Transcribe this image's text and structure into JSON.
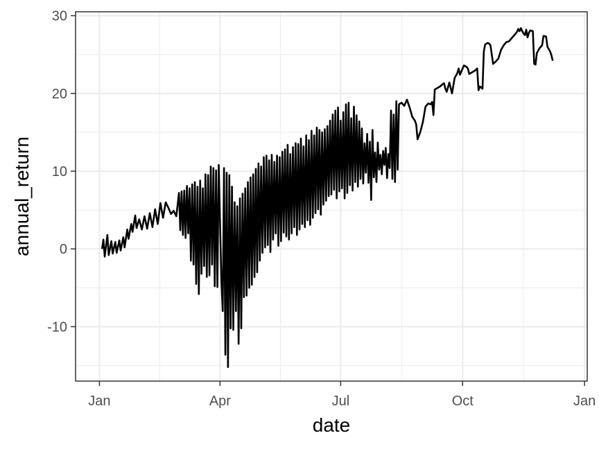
{
  "chart_data": {
    "type": "line",
    "xlabel": "date",
    "ylabel": "annual_return",
    "x_ticks": [
      {
        "label": "Jan",
        "value": "2020-01-01"
      },
      {
        "label": "Apr",
        "value": "2020-04-01"
      },
      {
        "label": "Jul",
        "value": "2020-07-01"
      },
      {
        "label": "Oct",
        "value": "2020-10-01"
      },
      {
        "label": "Jan",
        "value": "2021-01-01"
      }
    ],
    "y_ticks": [
      -10,
      0,
      10,
      20,
      30
    ],
    "xlim": [
      "2019-12-14",
      "2021-01-03"
    ],
    "ylim": [
      -17,
      30.5
    ],
    "grid": true,
    "line_color": "#000000",
    "series": [
      {
        "points": [
          [
            "2020-01-03",
            0.0
          ],
          [
            "2020-01-04",
            1.2
          ],
          [
            "2020-01-05",
            -1.0
          ],
          [
            "2020-01-07",
            1.8
          ],
          [
            "2020-01-08",
            -0.8
          ],
          [
            "2020-01-10",
            1.0
          ],
          [
            "2020-01-11",
            -0.6
          ],
          [
            "2020-01-13",
            0.9
          ],
          [
            "2020-01-14",
            -0.5
          ],
          [
            "2020-01-16",
            1.1
          ],
          [
            "2020-01-17",
            -0.2
          ],
          [
            "2020-01-19",
            1.5
          ],
          [
            "2020-01-20",
            0.2
          ],
          [
            "2020-01-22",
            2.5
          ],
          [
            "2020-01-23",
            1.3
          ],
          [
            "2020-01-25",
            3.2
          ],
          [
            "2020-01-26",
            2.2
          ],
          [
            "2020-01-28",
            4.3
          ],
          [
            "2020-01-29",
            2.7
          ],
          [
            "2020-01-31",
            3.8
          ],
          [
            "2020-02-02",
            2.5
          ],
          [
            "2020-02-04",
            4.2
          ],
          [
            "2020-02-06",
            2.6
          ],
          [
            "2020-02-08",
            4.6
          ],
          [
            "2020-02-10",
            2.8
          ],
          [
            "2020-02-12",
            5.1
          ],
          [
            "2020-02-14",
            3.2
          ],
          [
            "2020-02-16",
            5.9
          ],
          [
            "2020-02-18",
            4.0
          ],
          [
            "2020-02-20",
            6.0
          ],
          [
            "2020-02-22",
            5.3
          ],
          [
            "2020-02-24",
            4.5
          ],
          [
            "2020-02-26",
            4.9
          ],
          [
            "2020-02-28",
            4.2
          ],
          [
            "2020-03-01",
            7.2
          ],
          [
            "2020-03-02",
            2.4
          ],
          [
            "2020-03-03",
            7.4
          ],
          [
            "2020-03-04",
            1.8
          ],
          [
            "2020-03-05",
            7.5
          ],
          [
            "2020-03-06",
            1.4
          ],
          [
            "2020-03-07",
            8.1
          ],
          [
            "2020-03-08",
            2.0
          ],
          [
            "2020-03-09",
            7.8
          ],
          [
            "2020-03-10",
            -1.5
          ],
          [
            "2020-03-11",
            8.3
          ],
          [
            "2020-03-12",
            -2.0
          ],
          [
            "2020-03-13",
            8.6
          ],
          [
            "2020-03-14",
            -4.5
          ],
          [
            "2020-03-15",
            8.0
          ],
          [
            "2020-03-16",
            -5.8
          ],
          [
            "2020-03-17",
            8.8
          ],
          [
            "2020-03-18",
            -3.2
          ],
          [
            "2020-03-19",
            7.8
          ],
          [
            "2020-03-20",
            -2.2
          ],
          [
            "2020-03-21",
            9.6
          ],
          [
            "2020-03-22",
            -3.6
          ],
          [
            "2020-03-23",
            9.5
          ],
          [
            "2020-03-24",
            -3.4
          ],
          [
            "2020-03-25",
            10.6
          ],
          [
            "2020-03-26",
            -2.0
          ],
          [
            "2020-03-27",
            10.4
          ],
          [
            "2020-03-28",
            -4.8
          ],
          [
            "2020-03-29",
            10.1
          ],
          [
            "2020-03-30",
            -4.9
          ],
          [
            "2020-03-31",
            10.8
          ],
          [
            "2020-04-02",
            -4.0
          ],
          [
            "2020-04-03",
            -8.0
          ],
          [
            "2020-04-04",
            10.4
          ],
          [
            "2020-04-05",
            -13.6
          ],
          [
            "2020-04-06",
            9.8
          ],
          [
            "2020-04-07",
            -15.2
          ],
          [
            "2020-04-08",
            9.5
          ],
          [
            "2020-04-09",
            -10.2
          ],
          [
            "2020-04-10",
            8.0
          ],
          [
            "2020-04-11",
            -10.4
          ],
          [
            "2020-04-12",
            6.0
          ],
          [
            "2020-04-13",
            -8.0
          ],
          [
            "2020-04-14",
            5.5
          ],
          [
            "2020-04-15",
            -12.2
          ],
          [
            "2020-04-16",
            6.5
          ],
          [
            "2020-04-17",
            -10.2
          ],
          [
            "2020-04-18",
            7.1
          ],
          [
            "2020-04-19",
            -6.2
          ],
          [
            "2020-04-20",
            7.8
          ],
          [
            "2020-04-21",
            -6.0
          ],
          [
            "2020-04-22",
            8.6
          ],
          [
            "2020-04-23",
            -5.0
          ],
          [
            "2020-04-24",
            9.2
          ],
          [
            "2020-04-25",
            -4.6
          ],
          [
            "2020-04-26",
            9.6
          ],
          [
            "2020-04-27",
            -3.6
          ],
          [
            "2020-04-28",
            10.3
          ],
          [
            "2020-04-29",
            -3.0
          ],
          [
            "2020-04-30",
            11.0
          ],
          [
            "2020-05-01",
            -1.5
          ],
          [
            "2020-05-02",
            10.6
          ],
          [
            "2020-05-03",
            -0.5
          ],
          [
            "2020-05-04",
            11.8
          ],
          [
            "2020-05-05",
            0.2
          ],
          [
            "2020-05-06",
            12.0
          ],
          [
            "2020-05-07",
            0.5
          ],
          [
            "2020-05-08",
            11.4
          ],
          [
            "2020-05-09",
            -0.4
          ],
          [
            "2020-05-10",
            12.1
          ],
          [
            "2020-05-11",
            1.2
          ],
          [
            "2020-05-12",
            11.2
          ],
          [
            "2020-05-13",
            2.0
          ],
          [
            "2020-05-14",
            12.0
          ],
          [
            "2020-05-15",
            0.4
          ],
          [
            "2020-05-16",
            11.8
          ],
          [
            "2020-05-17",
            1.0
          ],
          [
            "2020-05-18",
            12.5
          ],
          [
            "2020-05-19",
            2.1
          ],
          [
            "2020-05-20",
            12.8
          ],
          [
            "2020-05-21",
            1.6
          ],
          [
            "2020-05-22",
            13.4
          ],
          [
            "2020-05-23",
            1.2
          ],
          [
            "2020-05-24",
            12.2
          ],
          [
            "2020-05-25",
            2.0
          ],
          [
            "2020-05-26",
            13.1
          ],
          [
            "2020-05-27",
            2.8
          ],
          [
            "2020-05-28",
            13.6
          ],
          [
            "2020-05-29",
            1.8
          ],
          [
            "2020-05-30",
            13.5
          ],
          [
            "2020-05-31",
            2.5
          ],
          [
            "2020-06-01",
            14.2
          ],
          [
            "2020-06-02",
            3.2
          ],
          [
            "2020-06-03",
            13.2
          ],
          [
            "2020-06-04",
            2.8
          ],
          [
            "2020-06-05",
            14.6
          ],
          [
            "2020-06-06",
            3.7
          ],
          [
            "2020-06-07",
            14.0
          ],
          [
            "2020-06-08",
            3.1
          ],
          [
            "2020-06-09",
            15.2
          ],
          [
            "2020-06-10",
            4.0
          ],
          [
            "2020-06-11",
            14.6
          ],
          [
            "2020-06-12",
            4.6
          ],
          [
            "2020-06-13",
            15.6
          ],
          [
            "2020-06-14",
            5.1
          ],
          [
            "2020-06-15",
            15.3
          ],
          [
            "2020-06-16",
            4.4
          ],
          [
            "2020-06-17",
            15.0
          ],
          [
            "2020-06-18",
            5.7
          ],
          [
            "2020-06-19",
            15.4
          ],
          [
            "2020-06-20",
            6.2
          ],
          [
            "2020-06-21",
            15.8
          ],
          [
            "2020-06-22",
            6.8
          ],
          [
            "2020-06-23",
            16.5
          ],
          [
            "2020-06-24",
            7.0
          ],
          [
            "2020-06-25",
            17.3
          ],
          [
            "2020-06-26",
            7.6
          ],
          [
            "2020-06-27",
            17.8
          ],
          [
            "2020-06-28",
            6.5
          ],
          [
            "2020-06-29",
            18.2
          ],
          [
            "2020-06-30",
            7.4
          ],
          [
            "2020-07-01",
            16.5
          ],
          [
            "2020-07-02",
            7.8
          ],
          [
            "2020-07-03",
            17.6
          ],
          [
            "2020-07-04",
            6.5
          ],
          [
            "2020-07-05",
            18.6
          ],
          [
            "2020-07-06",
            7.2
          ],
          [
            "2020-07-07",
            18.8
          ],
          [
            "2020-07-08",
            8.2
          ],
          [
            "2020-07-09",
            16.8
          ],
          [
            "2020-07-10",
            7.5
          ],
          [
            "2020-07-11",
            18.3
          ],
          [
            "2020-07-12",
            8.6
          ],
          [
            "2020-07-13",
            17.2
          ],
          [
            "2020-07-14",
            8.0
          ],
          [
            "2020-07-15",
            16.4
          ],
          [
            "2020-07-16",
            9.0
          ],
          [
            "2020-07-17",
            15.5
          ],
          [
            "2020-07-18",
            8.4
          ],
          [
            "2020-07-19",
            13.6
          ],
          [
            "2020-07-20",
            9.8
          ],
          [
            "2020-07-21",
            14.8
          ],
          [
            "2020-07-22",
            8.5
          ],
          [
            "2020-07-23",
            13.8
          ],
          [
            "2020-07-24",
            6.3
          ],
          [
            "2020-07-25",
            15.3
          ],
          [
            "2020-07-26",
            9.2
          ],
          [
            "2020-07-27",
            12.4
          ],
          [
            "2020-07-28",
            8.6
          ],
          [
            "2020-07-29",
            13.7
          ],
          [
            "2020-07-30",
            10.2
          ],
          [
            "2020-07-31",
            12.1
          ],
          [
            "2020-08-01",
            9.6
          ],
          [
            "2020-08-02",
            12.6
          ],
          [
            "2020-08-03",
            10.8
          ],
          [
            "2020-08-04",
            13.0
          ],
          [
            "2020-08-05",
            9.1
          ],
          [
            "2020-08-06",
            12.2
          ],
          [
            "2020-08-07",
            10.4
          ],
          [
            "2020-08-08",
            17.8
          ],
          [
            "2020-08-09",
            9.0
          ],
          [
            "2020-08-10",
            17.3
          ],
          [
            "2020-08-11",
            8.6
          ],
          [
            "2020-08-12",
            19.0
          ],
          [
            "2020-08-13",
            10.2
          ],
          [
            "2020-08-14",
            18.6
          ],
          [
            "2020-08-16",
            18.8
          ],
          [
            "2020-08-18",
            18.4
          ],
          [
            "2020-08-20",
            19.2
          ],
          [
            "2020-08-22",
            18.2
          ],
          [
            "2020-08-24",
            17.0
          ],
          [
            "2020-08-26",
            16.5
          ],
          [
            "2020-08-27",
            16.0
          ],
          [
            "2020-08-28",
            14.1
          ],
          [
            "2020-08-30",
            15.0
          ],
          [
            "2020-09-01",
            16.3
          ],
          [
            "2020-09-03",
            18.3
          ],
          [
            "2020-09-05",
            18.7
          ],
          [
            "2020-09-07",
            18.6
          ],
          [
            "2020-09-08",
            18.9
          ],
          [
            "2020-09-09",
            17.2
          ],
          [
            "2020-09-10",
            20.5
          ],
          [
            "2020-09-12",
            20.7
          ],
          [
            "2020-09-14",
            20.9
          ],
          [
            "2020-09-16",
            21.2
          ],
          [
            "2020-09-17",
            21.3
          ],
          [
            "2020-09-18",
            20.6
          ],
          [
            "2020-09-19",
            20.2
          ],
          [
            "2020-09-21",
            21.4
          ],
          [
            "2020-09-23",
            20.0
          ],
          [
            "2020-09-25",
            22.0
          ],
          [
            "2020-09-27",
            22.6
          ],
          [
            "2020-09-28",
            23.2
          ],
          [
            "2020-09-29",
            22.4
          ],
          [
            "2020-09-30",
            22.8
          ],
          [
            "2020-10-02",
            23.6
          ],
          [
            "2020-10-04",
            23.4
          ],
          [
            "2020-10-05",
            23.2
          ],
          [
            "2020-10-06",
            22.5
          ],
          [
            "2020-10-08",
            22.7
          ],
          [
            "2020-10-10",
            22.9
          ],
          [
            "2020-10-12",
            23.2
          ],
          [
            "2020-10-13",
            20.4
          ],
          [
            "2020-10-14",
            20.9
          ],
          [
            "2020-10-16",
            20.6
          ],
          [
            "2020-10-17",
            25.4
          ],
          [
            "2020-10-18",
            26.3
          ],
          [
            "2020-10-20",
            26.5
          ],
          [
            "2020-10-21",
            26.4
          ],
          [
            "2020-10-22",
            26.2
          ],
          [
            "2020-10-24",
            23.8
          ],
          [
            "2020-10-26",
            24.1
          ],
          [
            "2020-10-28",
            24.5
          ],
          [
            "2020-10-30",
            25.6
          ],
          [
            "2020-11-01",
            26.2
          ],
          [
            "2020-11-03",
            26.6
          ],
          [
            "2020-11-05",
            26.7
          ],
          [
            "2020-11-07",
            27.1
          ],
          [
            "2020-11-09",
            27.5
          ],
          [
            "2020-11-11",
            27.9
          ],
          [
            "2020-11-12",
            28.3
          ],
          [
            "2020-11-13",
            28.0
          ],
          [
            "2020-11-14",
            28.4
          ],
          [
            "2020-11-15",
            28.0
          ],
          [
            "2020-11-16",
            27.7
          ],
          [
            "2020-11-17",
            27.5
          ],
          [
            "2020-11-18",
            28.2
          ],
          [
            "2020-11-19",
            27.2
          ],
          [
            "2020-11-20",
            27.8
          ],
          [
            "2020-11-21",
            28.1
          ],
          [
            "2020-11-23",
            28.0
          ],
          [
            "2020-11-24",
            23.8
          ],
          [
            "2020-11-25",
            23.7
          ],
          [
            "2020-11-26",
            25.2
          ],
          [
            "2020-11-28",
            25.8
          ],
          [
            "2020-11-30",
            26.2
          ],
          [
            "2020-12-01",
            27.4
          ],
          [
            "2020-12-03",
            27.3
          ],
          [
            "2020-12-04",
            26.0
          ],
          [
            "2020-12-06",
            25.4
          ],
          [
            "2020-12-07",
            24.9
          ],
          [
            "2020-12-08",
            24.2
          ]
        ]
      }
    ]
  }
}
